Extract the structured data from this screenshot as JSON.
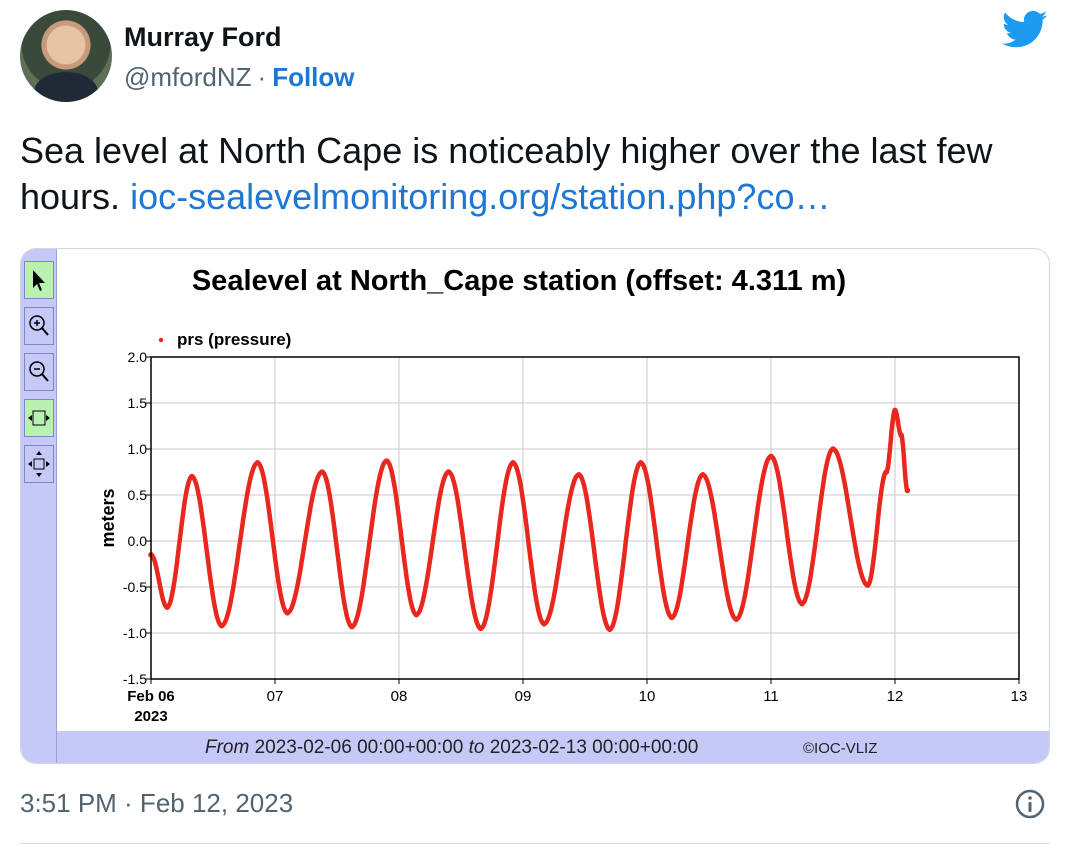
{
  "tweet": {
    "author": {
      "name": "Murray Ford",
      "handle": "@mfordNZ",
      "separator": "·",
      "follow_label": "Follow",
      "avatar_icon": "user-avatar",
      "brand_icon": "twitter-bird-icon"
    },
    "text": "Sea level at North Cape is noticeably higher over the last few hours.",
    "link_text": "ioc-sealevelmonitoring.org/station.php?co…",
    "timestamp": "3:51 PM · Feb 12, 2023",
    "info_icon": "info-icon",
    "colors": {
      "link": "#1d77d4",
      "secondary": "#536471",
      "brand": "#1d9bf0"
    }
  },
  "card": {
    "tools": [
      {
        "name": "pointer",
        "icon": "arrow-pointer-icon"
      },
      {
        "name": "zoom-in",
        "icon": "zoom-in-icon"
      },
      {
        "name": "zoom-out",
        "icon": "zoom-out-icon"
      },
      {
        "name": "fit-width",
        "icon": "fit-width-icon"
      },
      {
        "name": "move",
        "icon": "move-arrows-icon"
      }
    ],
    "footer": {
      "from_label": "From",
      "from_value": "2023-02-06 00:00+00:00",
      "to_label": "to",
      "to_value": "2023-02-13 00:00+00:00",
      "copyright": "©IOC-VLIZ"
    }
  },
  "chart_data": {
    "type": "scatter",
    "title": "Sealevel at North_Cape station (offset: 4.311 m)",
    "ylabel": "meters",
    "xlabel": "",
    "x_unit": "days",
    "x_ticks": [
      "Feb 06\n2023",
      "07",
      "08",
      "09",
      "10",
      "11",
      "12",
      "13"
    ],
    "x_range": [
      "2023-02-06",
      "2023-02-13"
    ],
    "ylim": [
      -1.5,
      2.0
    ],
    "y_ticks": [
      "2.0",
      "1.5",
      "1.0",
      "0.5",
      "0.0",
      "-0.5",
      "-1.0",
      "-1.5"
    ],
    "grid": true,
    "legend_position": "top-left",
    "series": [
      {
        "name": "prs (pressure)",
        "color": "#e8281e",
        "points": [
          [
            0.0,
            -0.15
          ],
          [
            0.13,
            -0.72
          ],
          [
            0.33,
            0.7
          ],
          [
            0.57,
            -0.92
          ],
          [
            0.86,
            0.85
          ],
          [
            1.1,
            -0.78
          ],
          [
            1.38,
            0.75
          ],
          [
            1.62,
            -0.93
          ],
          [
            1.9,
            0.87
          ],
          [
            2.14,
            -0.8
          ],
          [
            2.4,
            0.75
          ],
          [
            2.66,
            -0.95
          ],
          [
            2.92,
            0.85
          ],
          [
            3.17,
            -0.9
          ],
          [
            3.45,
            0.72
          ],
          [
            3.7,
            -0.96
          ],
          [
            3.95,
            0.85
          ],
          [
            4.2,
            -0.83
          ],
          [
            4.45,
            0.72
          ],
          [
            4.72,
            -0.85
          ],
          [
            5.0,
            0.92
          ],
          [
            5.25,
            -0.68
          ],
          [
            5.5,
            1.0
          ],
          [
            5.78,
            -0.48
          ],
          [
            5.93,
            0.75
          ],
          [
            6.0,
            1.42
          ],
          [
            6.05,
            1.15
          ],
          [
            6.1,
            0.55
          ]
        ]
      }
    ]
  }
}
